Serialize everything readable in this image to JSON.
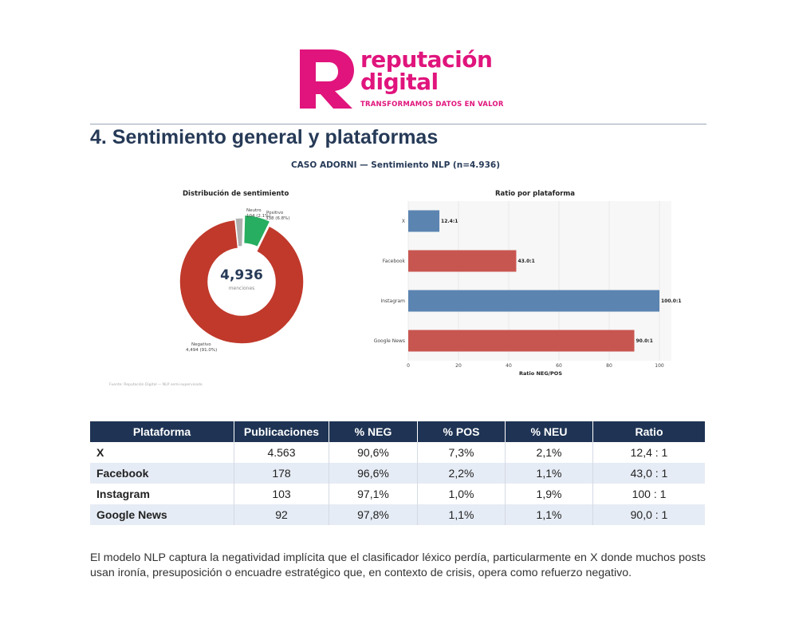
{
  "brand": {
    "name_line1": "reputación",
    "name_line2": "digital",
    "tagline": "TRANSFORMAMOS DATOS EN VALOR",
    "color": "#e0147c"
  },
  "section": {
    "title": "4. Sentimiento general y plataformas"
  },
  "figure": {
    "title": "CASO ADORNI — Sentimiento NLP (n=4.936)",
    "footnote": "Fuente: Reputación Digital — NLP semi-supervisado"
  },
  "chart_data": [
    {
      "type": "pie",
      "title": "Distribución de sentimiento",
      "center_value": "4,936",
      "center_label": "menciones",
      "slices": [
        {
          "label": "Negativo",
          "value": 4494,
          "value_label": "4,494 (91.0%)",
          "color": "#c0392b"
        },
        {
          "label": "Neutro",
          "value": 104,
          "value_label": "104 (2.1%)",
          "color": "#b0b0b0"
        },
        {
          "label": "Positivo",
          "value": 338,
          "value_label": "338 (6.8%)",
          "color": "#27ae60"
        }
      ]
    },
    {
      "type": "bar",
      "orientation": "horizontal",
      "title": "Ratio por plataforma",
      "xlabel": "Ratio NEG/POS",
      "xlim": [
        0,
        100
      ],
      "xticks": [
        0,
        20,
        40,
        60,
        80,
        100
      ],
      "categories": [
        "X",
        "Facebook",
        "Instagram",
        "Google News"
      ],
      "values": [
        12.4,
        43.0,
        100.0,
        90.0
      ],
      "value_labels": [
        "12.4:1",
        "43.0:1",
        "100.0:1",
        "90.0:1"
      ],
      "colors": [
        "#5b84b1",
        "#c85650",
        "#5b84b1",
        "#c85650"
      ]
    }
  ],
  "table": {
    "headers": [
      "Plataforma",
      "Publicaciones",
      "% NEG",
      "% POS",
      "% NEU",
      "Ratio"
    ],
    "rows": [
      [
        "X",
        "4.563",
        "90,6%",
        "7,3%",
        "2,1%",
        "12,4 : 1"
      ],
      [
        "Facebook",
        "178",
        "96,6%",
        "2,2%",
        "1,1%",
        "43,0 : 1"
      ],
      [
        "Instagram",
        "103",
        "97,1%",
        "1,0%",
        "1,9%",
        "100 : 1"
      ],
      [
        "Google News",
        "92",
        "97,8%",
        "1,1%",
        "1,1%",
        "90,0 : 1"
      ]
    ]
  },
  "body": {
    "text": "El modelo NLP captura la negatividad implícita que el clasificador léxico perdía, particularmente en X donde muchos posts usan ironía, presuposición o encuadre estratégico que, en contexto de crisis, opera como refuerzo negativo."
  }
}
